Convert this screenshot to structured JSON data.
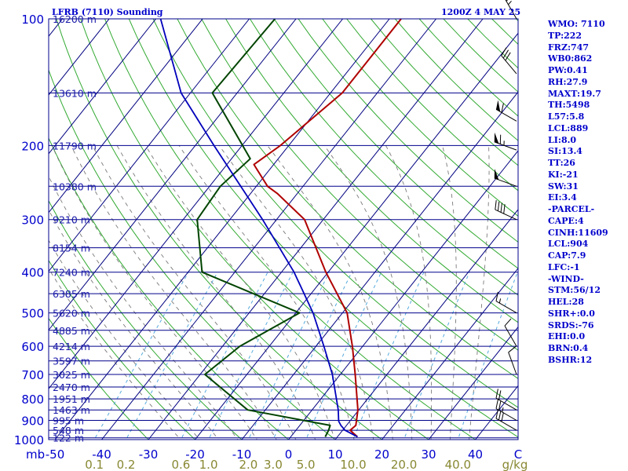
{
  "header": {
    "title": "LFRB (7110) Sounding",
    "time": "1200Z  4 MAY 25"
  },
  "colors": {
    "background": "#ffffff",
    "isobars": "#00008b",
    "isotherms": "#000080",
    "dry_adiabats": "#33aa33",
    "moist_adiabats": "#7a7a7a",
    "mixing_ratio": "#55aadd",
    "temperature": "#b00000",
    "dewpoint": "#004400",
    "parcel": "#0000bb",
    "labels": "#0000cc",
    "mixing_ratio_labels": "#888833",
    "wind_barbs": "#000000"
  },
  "indices": [
    "WMO: 7110",
    "TP:222",
    "FRZ:747",
    "WB0:862",
    "PW:0.41",
    "RH:27.9",
    "MAXT:19.7",
    "TH:5498",
    "L57:5.8",
    "LCL:889",
    "LI:8.0",
    "SI:13.4",
    "TT:26",
    "KI:-21",
    "SW:31",
    "EI:3.4",
    "-PARCEL-",
    "CAPE:4",
    "CINH:11609",
    "LCL:904",
    "CAP:7.9",
    "LFC:-1",
    "-WIND-",
    "STM:56/12",
    "HEL:28",
    "SHR+:0.0",
    "SRDS:-76",
    "EHI:0.0",
    "BRN:0.4",
    "BSHR:12"
  ],
  "chart_data": {
    "type": "line",
    "subtype": "skew-T log-P sounding",
    "y_axis": {
      "scale": "log",
      "direction": "inverted",
      "ylim": [
        1000,
        100
      ],
      "pressure_ticks": [
        1000,
        900,
        800,
        700,
        600,
        500,
        400,
        300,
        200,
        100
      ],
      "unit_label": "mb"
    },
    "x_axis": {
      "unit_label": "C",
      "temperature_ticks": [
        "-50",
        "-40",
        "-30",
        "-20",
        "-10",
        "0",
        "10",
        "20",
        "30",
        "40"
      ],
      "mixing_ratio_ticks": [
        "0.1",
        "0.2",
        "0.6",
        "1.0",
        "2.0",
        "3.0",
        "5.0",
        "10.0",
        "20.0",
        "40.0"
      ],
      "mixing_ratio_unit": "g/kg"
    },
    "height_levels": [
      {
        "p": 100,
        "label": "16200 m"
      },
      {
        "p": 150,
        "label": "13610 m"
      },
      {
        "p": 200,
        "label": "11790 m"
      },
      {
        "p": 250,
        "label": "10380 m"
      },
      {
        "p": 300,
        "label": "9210 m"
      },
      {
        "p": 350,
        "label": "8154 m"
      },
      {
        "p": 400,
        "label": "7240 m"
      },
      {
        "p": 450,
        "label": "6385 m"
      },
      {
        "p": 500,
        "label": "5620 m"
      },
      {
        "p": 550,
        "label": "4885 m"
      },
      {
        "p": 600,
        "label": "4214 m"
      },
      {
        "p": 650,
        "label": "3597 m"
      },
      {
        "p": 700,
        "label": "3025 m"
      },
      {
        "p": 750,
        "label": "2470 m"
      },
      {
        "p": 800,
        "label": "1951 m"
      },
      {
        "p": 850,
        "label": "1463 m"
      },
      {
        "p": 900,
        "label": "995 m"
      },
      {
        "p": 950,
        "label": "548 m"
      },
      {
        "p": 990,
        "label": "122 m"
      }
    ],
    "series": [
      {
        "key": "temperature",
        "points": [
          [
            985,
            14.3
          ],
          [
            950,
            11.6
          ],
          [
            925,
            12.0
          ],
          [
            850,
            9.8
          ],
          [
            700,
            3.2
          ],
          [
            600,
            -2.2
          ],
          [
            500,
            -9.0
          ],
          [
            400,
            -20.5
          ],
          [
            300,
            -34.0
          ],
          [
            260,
            -44.3
          ],
          [
            250,
            -47.6
          ],
          [
            222,
            -54.2
          ],
          [
            200,
            -51.8
          ],
          [
            150,
            -47.5
          ],
          [
            100,
            -47.5
          ]
        ]
      },
      {
        "key": "dewpoint",
        "points": [
          [
            985,
            7.4
          ],
          [
            950,
            7.0
          ],
          [
            925,
            6.5
          ],
          [
            850,
            -13.8
          ],
          [
            700,
            -29.0
          ],
          [
            600,
            -26.3
          ],
          [
            500,
            -19.2
          ],
          [
            400,
            -47.0
          ],
          [
            300,
            -57.0
          ],
          [
            250,
            -57.7
          ],
          [
            215,
            -56.0
          ],
          [
            150,
            -75.3
          ],
          [
            100,
            -74.5
          ]
        ]
      },
      {
        "key": "parcel",
        "points": [
          [
            985,
            14.3
          ],
          [
            950,
            10.5
          ],
          [
            925,
            8.8
          ],
          [
            904,
            7.6
          ],
          [
            850,
            5.6
          ],
          [
            700,
            -1.7
          ],
          [
            600,
            -8.3
          ],
          [
            500,
            -16.3
          ],
          [
            400,
            -27.3
          ],
          [
            300,
            -43.0
          ],
          [
            200,
            -66.0
          ],
          [
            150,
            -82.0
          ],
          [
            100,
            -99.0
          ]
        ]
      }
    ],
    "wind_barbs": [
      {
        "p": 100,
        "dir": 330,
        "spd": 25
      },
      {
        "p": 135,
        "dir": 320,
        "spd": 30
      },
      {
        "p": 175,
        "dir": 300,
        "spd": 60
      },
      {
        "p": 205,
        "dir": 290,
        "spd": 65
      },
      {
        "p": 250,
        "dir": 290,
        "spd": 50
      },
      {
        "p": 300,
        "dir": 295,
        "spd": 40
      },
      {
        "p": 500,
        "dir": 300,
        "spd": 15
      },
      {
        "p": 600,
        "dir": 330,
        "spd": 10
      },
      {
        "p": 700,
        "dir": 340,
        "spd": 10
      },
      {
        "p": 850,
        "dir": 300,
        "spd": 20
      },
      {
        "p": 900,
        "dir": 300,
        "spd": 25
      },
      {
        "p": 950,
        "dir": 300,
        "spd": 30
      }
    ],
    "grid": true,
    "legend": "none"
  }
}
